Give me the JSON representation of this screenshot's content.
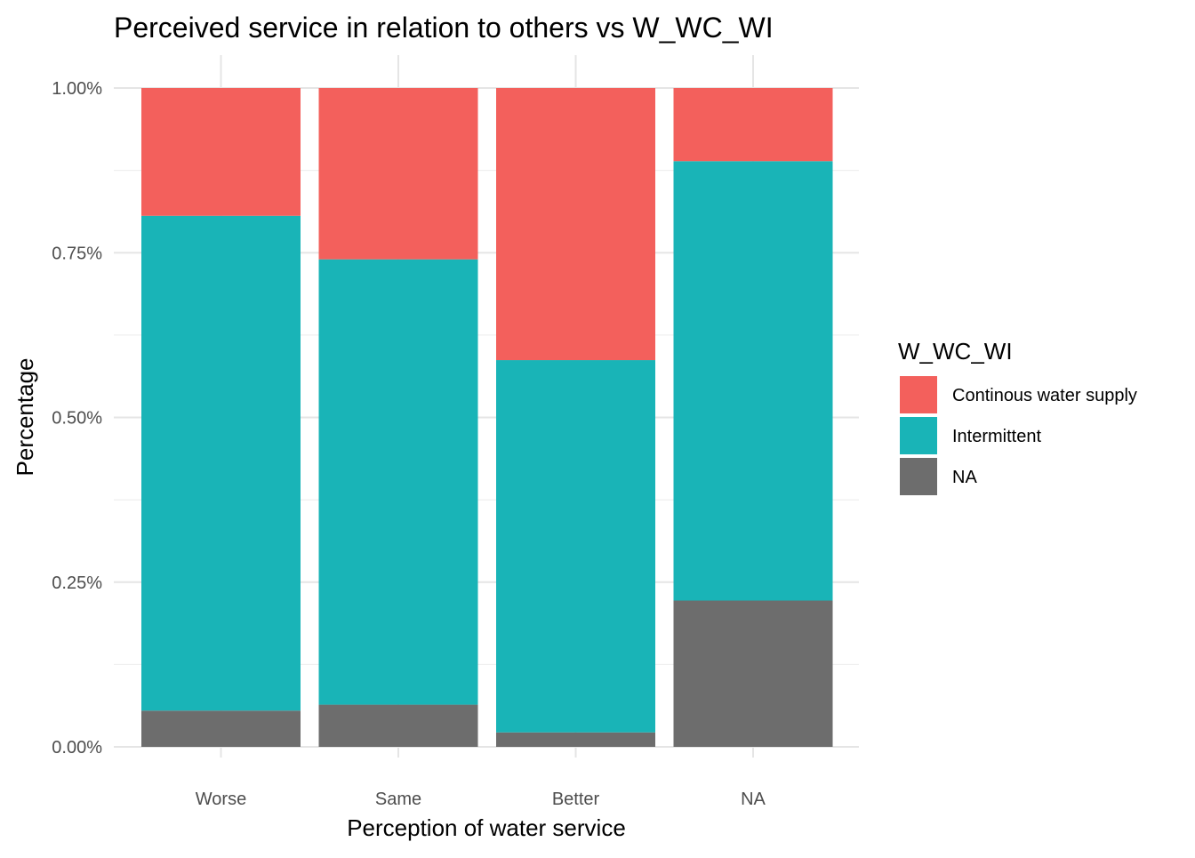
{
  "chart_data": {
    "type": "bar",
    "stacked": true,
    "title": "Perceived service in relation to others vs W_WC_WI",
    "xlabel": "Perception of water service",
    "ylabel": "Percentage",
    "categories": [
      "Worse",
      "Same",
      "Better",
      "NA"
    ],
    "ylim": [
      0,
      1
    ],
    "y_ticks": [
      0,
      0.25,
      0.5,
      0.75,
      1.0
    ],
    "y_tick_labels": [
      "0.00%",
      "0.25%",
      "0.50%",
      "0.75%",
      "1.00%"
    ],
    "grid": true,
    "legend_title": "W_WC_WI",
    "legend_position": "right",
    "series": [
      {
        "name": "NA",
        "color": "#6d6d6d",
        "values": [
          0.055,
          0.064,
          0.022,
          0.222
        ]
      },
      {
        "name": "Intermittent",
        "color": "#19b4b7",
        "values": [
          0.751,
          0.676,
          0.565,
          0.667
        ]
      },
      {
        "name": "Continous water supply",
        "color": "#f3605c",
        "values": [
          0.194,
          0.26,
          0.413,
          0.111
        ]
      }
    ],
    "legend_order": [
      "Continous water supply",
      "Intermittent",
      "NA"
    ]
  }
}
